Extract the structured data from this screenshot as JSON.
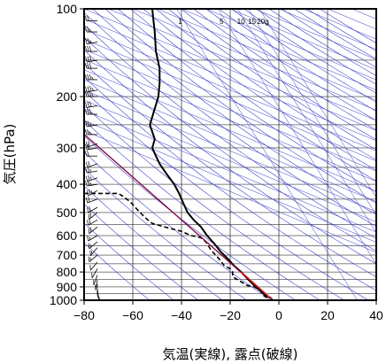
{
  "chart_data": {
    "type": "line",
    "title": "",
    "xlabel": "気温(実線), 露点(破線)",
    "ylabel": "気圧(hPa)",
    "xlim": [
      -80,
      40
    ],
    "ylim": [
      1000,
      100
    ],
    "y_scale": "log",
    "x_ticks": [
      "−80",
      "−60",
      "−40",
      "−20",
      "0",
      "20",
      "40"
    ],
    "x_tick_values": [
      -80,
      -60,
      -40,
      -20,
      0,
      20,
      40
    ],
    "y_ticks": [
      "100",
      "200",
      "300",
      "400",
      "500",
      "600",
      "700",
      "800",
      "900",
      "1000"
    ],
    "y_tick_values": [
      100,
      200,
      300,
      400,
      500,
      600,
      700,
      800,
      900,
      1000
    ],
    "mixing_ratio_labels": [
      {
        "text": "1",
        "t": -42
      },
      {
        "text": "5",
        "t": -25
      },
      {
        "text": "10",
        "t": -17
      },
      {
        "text": "15",
        "t": -12.5
      },
      {
        "text": "20g",
        "t": -8
      }
    ],
    "grid": true,
    "colors": {
      "reference_lines": "#3333cc",
      "parcel_line": "#800040",
      "profiles": "#000000",
      "red_segment": "#d01818"
    },
    "series": [
      {
        "name": "",
        "style": "solid",
        "points": [
          [
            -52,
            100
          ],
          [
            -51.5,
            110
          ],
          [
            -51,
            120
          ],
          [
            -50.5,
            140
          ],
          [
            -49,
            160
          ],
          [
            -49,
            180
          ],
          [
            -49.5,
            200
          ],
          [
            -51,
            220
          ],
          [
            -53,
            250
          ],
          [
            -51,
            280
          ],
          [
            -52,
            300
          ],
          [
            -50.5,
            320
          ],
          [
            -49,
            340
          ],
          [
            -46,
            370
          ],
          [
            -43,
            400
          ],
          [
            -41,
            430
          ],
          [
            -39,
            470
          ],
          [
            -37.5,
            500
          ],
          [
            -35,
            530
          ],
          [
            -32,
            560
          ],
          [
            -29.5,
            600
          ],
          [
            -26.5,
            640
          ],
          [
            -24,
            680
          ],
          [
            -21,
            720
          ],
          [
            -18.5,
            760
          ],
          [
            -15.5,
            800
          ],
          [
            -12.5,
            850
          ],
          [
            -9.5,
            900
          ],
          [
            -7.5,
            930
          ],
          [
            -5.5,
            960
          ],
          [
            -3.5,
            980
          ],
          [
            -2.5,
            1000
          ]
        ]
      },
      {
        "name": "",
        "style": "dashed",
        "points": [
          [
            -80,
            430
          ],
          [
            -66,
            430
          ],
          [
            -64,
            440
          ],
          [
            -61,
            460
          ],
          [
            -58,
            490
          ],
          [
            -55,
            520
          ],
          [
            -52,
            545
          ],
          [
            -47,
            560
          ],
          [
            -40,
            580
          ],
          [
            -36,
            600
          ],
          [
            -32,
            610
          ],
          [
            -30,
            630
          ],
          [
            -29,
            650
          ],
          [
            -28,
            670
          ],
          [
            -26,
            700
          ],
          [
            -24,
            730
          ],
          [
            -22.5,
            760
          ],
          [
            -20,
            780
          ],
          [
            -19,
            800
          ],
          [
            -19,
            830
          ],
          [
            -17,
            850
          ],
          [
            -15,
            870
          ],
          [
            -13,
            890
          ],
          [
            -10,
            900
          ],
          [
            -7.5,
            930
          ],
          [
            -6.5,
            960
          ],
          [
            -5,
            980
          ],
          [
            -4,
            1000
          ]
        ]
      },
      {
        "name": "",
        "style": "solid",
        "points": [
          [
            -81,
            265
          ],
          [
            -2.5,
            1000
          ]
        ]
      }
    ],
    "red_segment": [
      [
        -15.5,
        800
      ],
      [
        -2.5,
        1000
      ]
    ],
    "wind_barbs": [
      {
        "p": 100,
        "speed": 15,
        "dir": 270
      },
      {
        "p": 110,
        "speed": 20,
        "dir": 270
      },
      {
        "p": 120,
        "speed": 25,
        "dir": 270
      },
      {
        "p": 130,
        "speed": 25,
        "dir": 260
      },
      {
        "p": 140,
        "speed": 30,
        "dir": 270
      },
      {
        "p": 150,
        "speed": 30,
        "dir": 260
      },
      {
        "p": 160,
        "speed": 30,
        "dir": 270
      },
      {
        "p": 175,
        "speed": 35,
        "dir": 270
      },
      {
        "p": 190,
        "speed": 35,
        "dir": 260
      },
      {
        "p": 200,
        "speed": 35,
        "dir": 270
      },
      {
        "p": 215,
        "speed": 30,
        "dir": 260
      },
      {
        "p": 230,
        "speed": 30,
        "dir": 270
      },
      {
        "p": 250,
        "speed": 25,
        "dir": 260
      },
      {
        "p": 270,
        "speed": 25,
        "dir": 270
      },
      {
        "p": 290,
        "speed": 20,
        "dir": 250
      },
      {
        "p": 300,
        "speed": 20,
        "dir": 260
      },
      {
        "p": 320,
        "speed": 20,
        "dir": 270
      },
      {
        "p": 340,
        "speed": 20,
        "dir": 250
      },
      {
        "p": 360,
        "speed": 25,
        "dir": 260
      },
      {
        "p": 380,
        "speed": 25,
        "dir": 250
      },
      {
        "p": 400,
        "speed": 25,
        "dir": 260
      },
      {
        "p": 420,
        "speed": 25,
        "dir": 240
      },
      {
        "p": 450,
        "speed": 20,
        "dir": 250
      },
      {
        "p": 480,
        "speed": 20,
        "dir": 240
      },
      {
        "p": 500,
        "speed": 20,
        "dir": 230
      },
      {
        "p": 530,
        "speed": 20,
        "dir": 240
      },
      {
        "p": 560,
        "speed": 20,
        "dir": 230
      },
      {
        "p": 600,
        "speed": 15,
        "dir": 240
      },
      {
        "p": 630,
        "speed": 15,
        "dir": 230
      },
      {
        "p": 660,
        "speed": 15,
        "dir": 220
      },
      {
        "p": 700,
        "speed": 15,
        "dir": 230
      },
      {
        "p": 740,
        "speed": 10,
        "dir": 220
      },
      {
        "p": 780,
        "speed": 10,
        "dir": 210
      },
      {
        "p": 820,
        "speed": 10,
        "dir": 200
      },
      {
        "p": 850,
        "speed": 10,
        "dir": 190
      },
      {
        "p": 880,
        "speed": 10,
        "dir": 180
      },
      {
        "p": 920,
        "speed": 5,
        "dir": 170
      },
      {
        "p": 960,
        "speed": 5,
        "dir": 160
      },
      {
        "p": 1000,
        "speed": 5,
        "dir": 150
      }
    ]
  }
}
